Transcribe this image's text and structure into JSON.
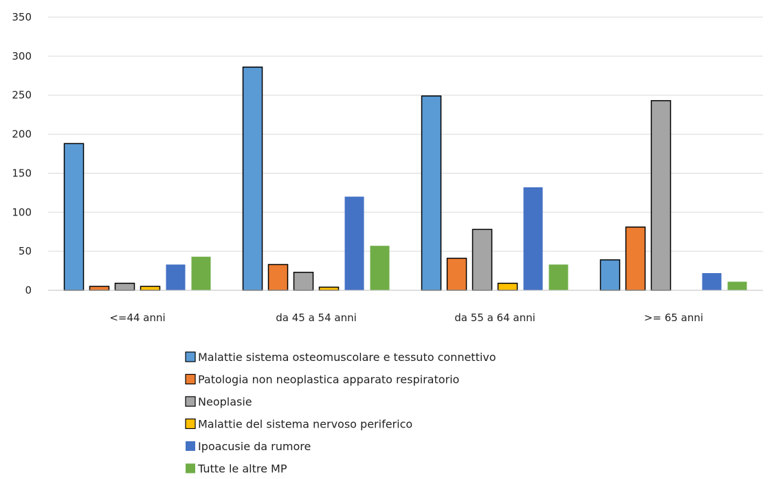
{
  "chart_data": {
    "type": "bar",
    "title": "",
    "xlabel": "",
    "ylabel": "",
    "ylim": [
      0,
      350
    ],
    "yticks": [
      0,
      50,
      100,
      150,
      200,
      250,
      300,
      350
    ],
    "grid": "horizontal",
    "legend_position": "bottom",
    "categories": [
      "<=44 anni",
      "da 45 a 54 anni",
      "da 55 a 64 anni",
      ">= 65 anni"
    ],
    "series": [
      {
        "name": "Malattie sistema osteomuscolare e tessuto connettivo",
        "color": "#5b9bd5",
        "outlined": true,
        "values": [
          188,
          286,
          249,
          39
        ]
      },
      {
        "name": "Patologia non neoplastica apparato respiratorio",
        "color": "#ed7d31",
        "outlined": true,
        "values": [
          5,
          33,
          41,
          81
        ]
      },
      {
        "name": "Neoplasie",
        "color": "#a5a5a5",
        "outlined": true,
        "values": [
          9,
          23,
          78,
          243
        ]
      },
      {
        "name": "Malattie del sistema nervoso periferico",
        "color": "#ffc000",
        "outlined": true,
        "values": [
          5,
          4,
          9,
          0
        ]
      },
      {
        "name": "Ipoacusie da rumore",
        "color": "#4472c4",
        "outlined": false,
        "values": [
          33,
          120,
          132,
          22
        ]
      },
      {
        "name": "Tutte le altre MP",
        "color": "#70ad47",
        "outlined": false,
        "values": [
          43,
          57,
          33,
          11
        ]
      }
    ]
  }
}
